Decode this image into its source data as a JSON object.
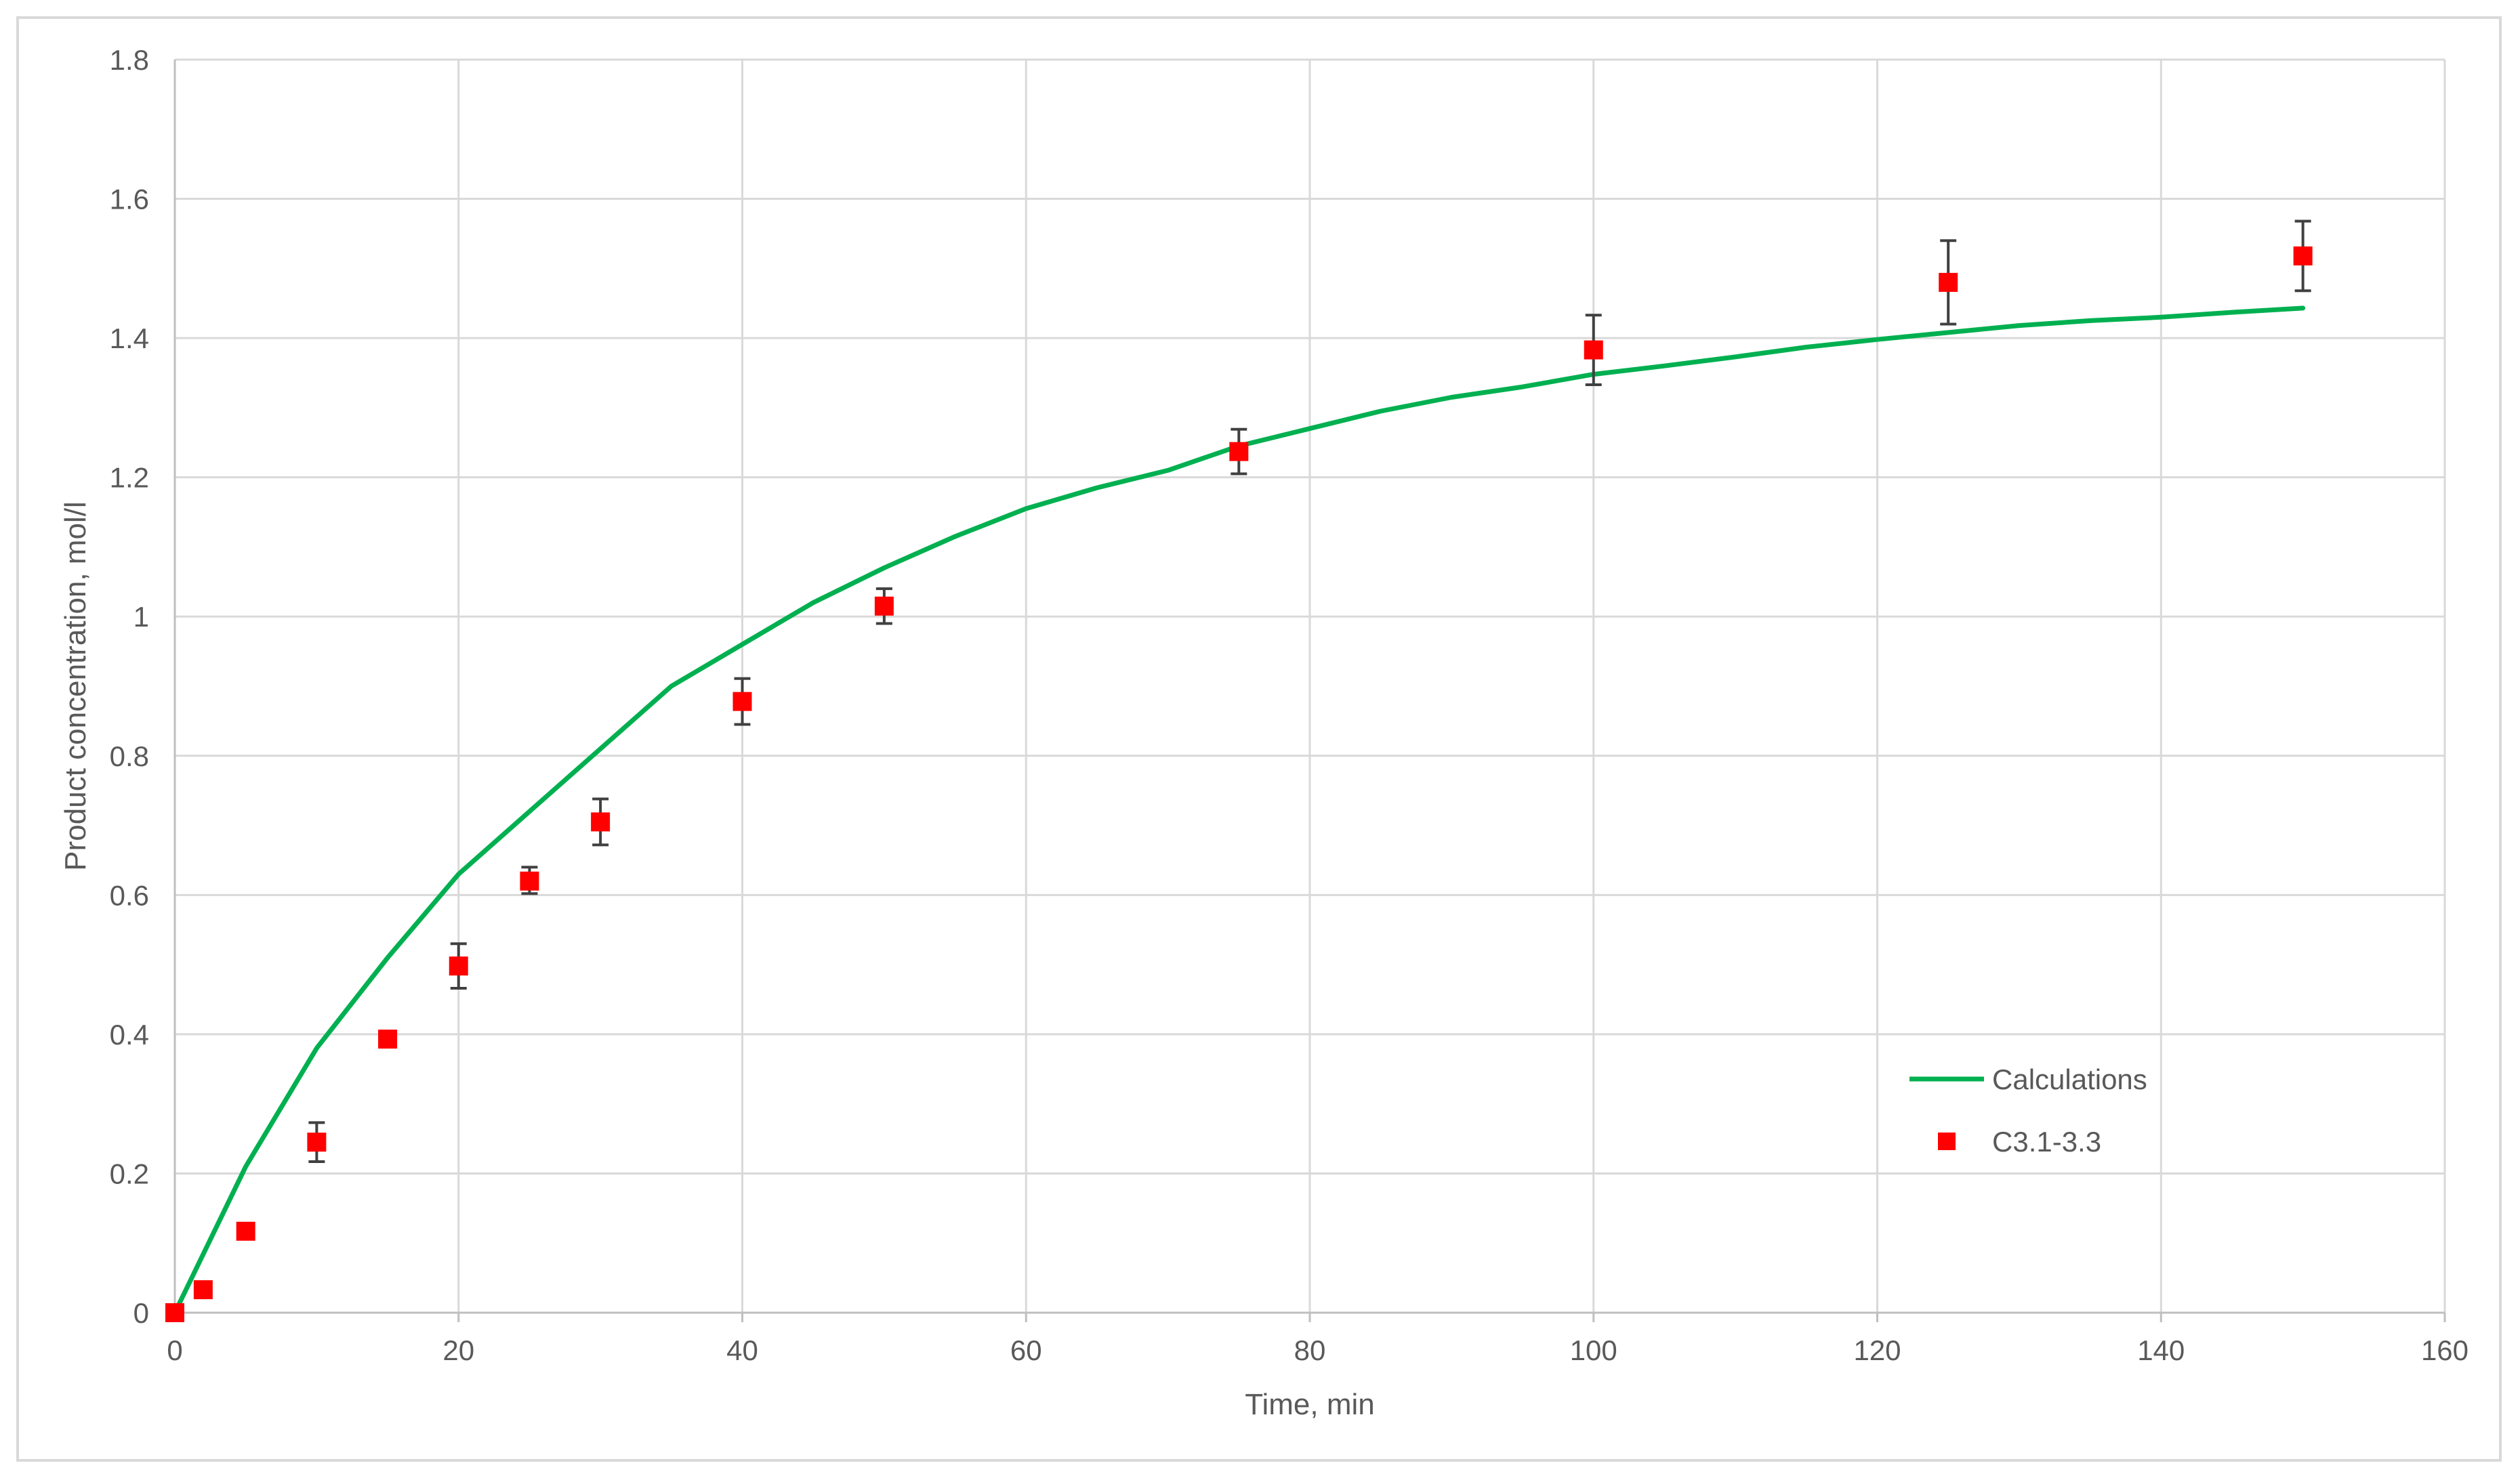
{
  "chart_data": {
    "type": "scatter",
    "title": "",
    "xlabel": "Time, min",
    "ylabel": "Product concentration, mol/l",
    "xlim": [
      0,
      160
    ],
    "ylim": [
      0,
      1.8
    ],
    "xticks": [
      0,
      20,
      40,
      60,
      80,
      100,
      120,
      140,
      160
    ],
    "yticks": [
      0,
      0.2,
      0.4,
      0.6,
      0.8,
      1,
      1.2,
      1.4,
      1.6,
      1.8
    ],
    "xtick_labels": [
      "0",
      "20",
      "40",
      "60",
      "80",
      "100",
      "120",
      "140",
      "160"
    ],
    "ytick_labels": [
      "0",
      "0.2",
      "0.4",
      "0.6",
      "0.8",
      "1",
      "1.2",
      "1.4",
      "1.6",
      "1.8"
    ],
    "grid": true,
    "legend_position": "bottom-right",
    "series": [
      {
        "name": "Calculations",
        "kind": "line",
        "color": "#00b050",
        "x": [
          0,
          5,
          10,
          15,
          20,
          25,
          30,
          35,
          40,
          45,
          50,
          55,
          60,
          65,
          70,
          75,
          80,
          85,
          90,
          95,
          100,
          105,
          110,
          115,
          120,
          125,
          130,
          135,
          140,
          145,
          150
        ],
        "y": [
          0,
          0.21,
          0.38,
          0.51,
          0.63,
          0.72,
          0.81,
          0.9,
          0.96,
          1.02,
          1.07,
          1.115,
          1.155,
          1.185,
          1.21,
          1.245,
          1.27,
          1.295,
          1.315,
          1.33,
          1.348,
          1.36,
          1.373,
          1.387,
          1.398,
          1.408,
          1.418,
          1.425,
          1.43,
          1.437,
          1.443
        ]
      },
      {
        "name": "C3.1-3.3",
        "kind": "scatter",
        "color": "#ff0000",
        "marker": "square",
        "x": [
          0,
          2,
          5,
          10,
          15,
          20,
          25,
          30,
          40,
          50,
          75,
          100,
          125,
          150
        ],
        "y": [
          0,
          0.033,
          0.117,
          0.245,
          0.393,
          0.498,
          0.62,
          0.705,
          0.878,
          1.015,
          1.237,
          1.383,
          1.48,
          1.518
        ],
        "error_plus": [
          0,
          0,
          0,
          0.028,
          0,
          0.032,
          0.02,
          0.033,
          0.033,
          0.025,
          0.032,
          0.05,
          0.06,
          0.05
        ],
        "error_minus": [
          0,
          0,
          0,
          0.028,
          0,
          0.032,
          0.018,
          0.033,
          0.033,
          0.025,
          0.032,
          0.05,
          0.06,
          0.05
        ]
      }
    ]
  }
}
